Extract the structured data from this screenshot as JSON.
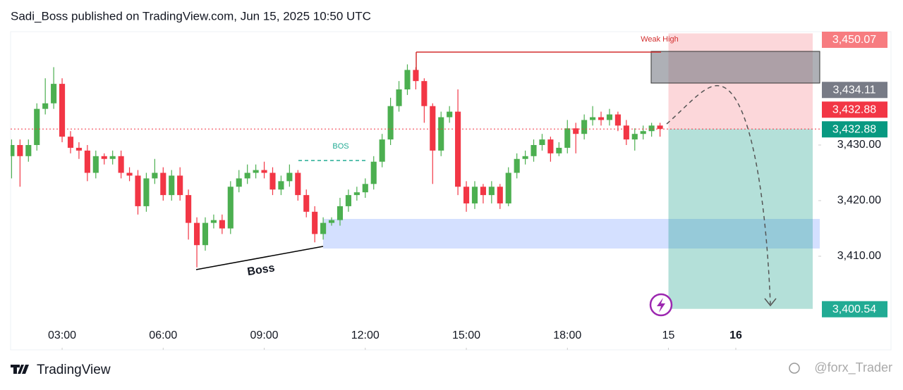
{
  "header": "Sadi_Boss published on TradingView.com, Jun 15, 2025 10:50 UTC",
  "footer_brand": "TradingView",
  "watermark": "@forx_Trader",
  "chart_data": {
    "type": "candlestick",
    "up_color": "#4caf50",
    "down_color": "#f23645",
    "grid": false,
    "x": [
      1.5,
      1.75,
      2,
      2.25,
      2.5,
      2.75,
      3,
      3.25,
      3.5,
      3.75,
      4,
      4.25,
      4.5,
      4.75,
      5,
      5.25,
      5.5,
      5.75,
      6,
      6.25,
      6.5,
      6.75,
      7,
      7.25,
      7.5,
      7.75,
      8,
      8.25,
      8.5,
      8.75,
      9,
      9.25,
      9.5,
      9.75,
      10,
      10.25,
      10.5,
      10.75,
      11,
      11.25,
      11.5,
      11.75,
      12,
      12.25,
      12.5,
      12.75,
      13,
      13.25,
      13.5,
      13.75,
      14,
      14.25,
      14.5,
      14.75,
      15,
      15.25,
      15.5,
      15.75,
      16,
      16.25,
      16.5,
      16.75,
      17,
      17.25,
      17.5,
      17.75,
      18,
      18.25,
      18.5,
      18.75,
      19,
      19.25,
      19.5,
      19.75,
      20,
      20.25,
      20.5,
      20.75
    ],
    "open": [
      3428,
      3430,
      3428,
      3430,
      3436.5,
      3437.5,
      3441,
      3431.5,
      3429.5,
      3429,
      3425,
      3428,
      3427.5,
      3428,
      3425,
      3424.5,
      3419,
      3424,
      3425,
      3421,
      3424.5,
      3421,
      3416,
      3412,
      3416,
      3416.5,
      3415,
      3422.5,
      3424,
      3425,
      3425.5,
      3425,
      3422,
      3423.5,
      3425,
      3421,
      3418,
      3414,
      3416,
      3416.5,
      3419,
      3421,
      3421.5,
      3423,
      3427,
      3431,
      3437,
      3440,
      3443.5,
      3441.5,
      3437,
      3429,
      3435,
      3436,
      3422.5,
      3419.5,
      3422.5,
      3421,
      3422.5,
      3419.5,
      3425,
      3427.5,
      3428,
      3430,
      3431,
      3428.5,
      3429.5,
      3433,
      3432,
      3434.5,
      3435,
      3434.5,
      3435.5,
      3433.5,
      3431,
      3432,
      3432.5,
      3433.5
    ],
    "high": [
      3431,
      3431,
      3431,
      3437.5,
      3442,
      3444,
      3442,
      3432.5,
      3430.5,
      3430,
      3429,
      3428.5,
      3429,
      3429,
      3426,
      3425.5,
      3425,
      3427.5,
      3426,
      3425.5,
      3426,
      3422,
      3417,
      3417,
      3417.5,
      3417.5,
      3423.5,
      3425.5,
      3426.5,
      3426.5,
      3427,
      3426,
      3424.5,
      3426.5,
      3425.5,
      3422,
      3419,
      3417,
      3417,
      3420.5,
      3422,
      3422.5,
      3424,
      3428,
      3432,
      3438.5,
      3441.5,
      3444.5,
      3444,
      3442,
      3437.5,
      3436,
      3437,
      3440,
      3423.5,
      3423.5,
      3423,
      3423.5,
      3423,
      3426,
      3428.5,
      3429,
      3431,
      3432,
      3431.5,
      3430.5,
      3434.5,
      3434,
      3435.5,
      3437,
      3436,
      3436.5,
      3436,
      3434.5,
      3433,
      3433.5,
      3434,
      3434
    ],
    "low": [
      3424,
      3422.5,
      3427,
      3429,
      3435.5,
      3436.5,
      3430.5,
      3428.5,
      3427.5,
      3423.5,
      3424,
      3426.5,
      3426.5,
      3424,
      3423.5,
      3417.5,
      3418,
      3423,
      3420,
      3420,
      3420,
      3413,
      3408,
      3411,
      3415,
      3414,
      3414,
      3421.5,
      3423,
      3424,
      3424,
      3421,
      3421,
      3422.5,
      3420,
      3417,
      3412.5,
      3413,
      3415.5,
      3415.5,
      3418,
      3420,
      3420.5,
      3422,
      3426,
      3430,
      3436,
      3439,
      3440,
      3434,
      3423,
      3428,
      3434,
      3421,
      3418,
      3418.5,
      3419.5,
      3419.5,
      3418.5,
      3419,
      3424,
      3426.5,
      3427,
      3429,
      3427,
      3428,
      3428.5,
      3428.5,
      3431,
      3433.5,
      3433.5,
      3433.5,
      3432.5,
      3430,
      3429,
      3431,
      3431.5,
      3431.5
    ],
    "close": [
      3430,
      3428,
      3430,
      3436.5,
      3437.5,
      3441,
      3431.5,
      3429.5,
      3429,
      3425,
      3428,
      3427.5,
      3428,
      3425,
      3424.5,
      3419,
      3424,
      3425,
      3421,
      3424.5,
      3421,
      3416,
      3412,
      3416,
      3416.5,
      3415,
      3422.5,
      3424,
      3425,
      3425.5,
      3425,
      3422,
      3423.5,
      3425,
      3421,
      3418,
      3414,
      3416,
      3416.5,
      3419,
      3421,
      3421.5,
      3423,
      3427,
      3431,
      3437,
      3440,
      3443.5,
      3441.5,
      3437,
      3429,
      3435,
      3436,
      3422.5,
      3419.5,
      3422.5,
      3421,
      3422.5,
      3419.5,
      3425,
      3427.5,
      3428,
      3430,
      3431,
      3428.5,
      3429.5,
      3433,
      3432,
      3434.5,
      3435,
      3434.5,
      3435.5,
      3433.5,
      3431,
      3432,
      3432.5,
      3433.5,
      3432.88
    ],
    "xlim": [
      1.47,
      25.45
    ],
    "ylim": [
      3397.85,
      3450.38
    ],
    "xticks": [
      {
        "value": 3,
        "label": "03:00"
      },
      {
        "value": 6,
        "label": "06:00"
      },
      {
        "value": 9,
        "label": "09:00"
      },
      {
        "value": 12,
        "label": "12:00"
      },
      {
        "value": 15,
        "label": "15:00"
      },
      {
        "value": 18,
        "label": "18:00"
      },
      {
        "value": 21,
        "label": "15"
      },
      {
        "value": 23,
        "label": "16"
      }
    ],
    "yticks": [
      {
        "value": 3430,
        "label": "3,430.00"
      },
      {
        "value": 3420,
        "label": "3,420.00"
      },
      {
        "value": 3410,
        "label": "3,410.00"
      }
    ],
    "price_labels": [
      {
        "value": 3450.07,
        "label": "3,450.07",
        "color": "#f77c80"
      },
      {
        "value": 3434.11,
        "label": "3,434.11",
        "color": "#787b86"
      },
      {
        "value": 3432.88,
        "label": "3,432.88",
        "color": "#f23645"
      },
      {
        "value": 3432.88,
        "label": "3,432.88",
        "color": "#089981"
      },
      {
        "value": 3400.54,
        "label": "3,400.54",
        "color": "#22ab94"
      }
    ],
    "annotations": [
      "Weak High",
      "BOS",
      "Boss"
    ]
  }
}
